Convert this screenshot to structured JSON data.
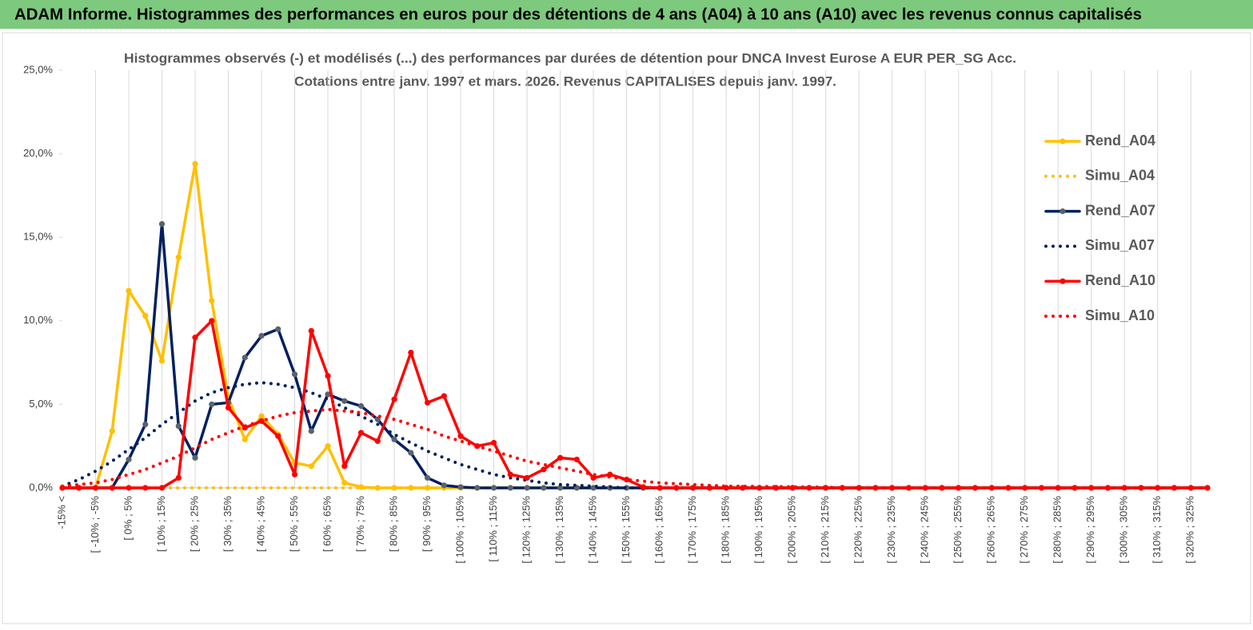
{
  "header": {
    "title": "ADAM Informe. Histogrammes des performances en euros pour des détentions de 4 ans (A04) à 10 ans (A10) avec les revenus connus capitalisés"
  },
  "chart_data": {
    "type": "line",
    "title": "Histogrammes observés (-) et modélisés (...) des performances par durées de détention pour DNCA Invest Eurose A EUR PER_SG Acc.",
    "subtitle": "Cotations entre janv. 1997 et mars. 2026. Revenus CAPITALISES depuis janv. 1997.",
    "categories": [
      "-15% <",
      null,
      "[ -10% ; -5%",
      null,
      "[ 0% ; 5%",
      null,
      "[ 10% ; 15%",
      null,
      "[ 20% ; 25%",
      null,
      "[ 30% ; 35%",
      null,
      "[ 40% ; 45%",
      null,
      "[ 50% ; 55%",
      null,
      "[ 60% ; 65%",
      null,
      "[ 70% ; 75%",
      null,
      "[ 80% ; 85%",
      null,
      "[ 90% ; 95%",
      null,
      "[ 100% ; 105%",
      null,
      "[ 110% ; 115%",
      null,
      "[ 120% ; 125%",
      null,
      "[ 130% ; 135%",
      null,
      "[ 140% ; 145%",
      null,
      "[ 150% ; 155%",
      null,
      "[ 160% ; 165%",
      null,
      "[ 170% ; 175%",
      null,
      "[ 180% ; 185%",
      null,
      "[ 190% ; 195%",
      null,
      "[ 200% ; 205%",
      null,
      "[ 210% ; 215%",
      null,
      "[ 220% ; 225%",
      null,
      "[ 230% ; 235%",
      null,
      "[ 240% ; 245%",
      null,
      "[ 250% ; 255%",
      null,
      "[ 260% ; 265%",
      null,
      "[ 270% ; 275%",
      null,
      "[ 280% ; 285%",
      null,
      "[ 290% ; 295%",
      null,
      "[ 300% ; 305%",
      null,
      "[ 310% ; 315%",
      null,
      "[ 320% ; 325%",
      null
    ],
    "series": [
      {
        "name": "Rend_A04",
        "color": "#ffc000",
        "marker_color": "#ffc000",
        "style": "solid",
        "values": [
          0,
          0,
          0,
          3.4,
          11.8,
          10.3,
          7.6,
          13.8,
          19.4,
          11.2,
          5.4,
          2.9,
          4.3,
          3.2,
          1.5,
          1.3,
          2.5,
          0.3,
          0.05,
          0,
          0,
          0,
          0,
          0,
          0,
          0,
          0,
          0,
          0,
          0,
          0,
          0,
          0,
          0,
          0,
          0,
          0,
          0,
          0,
          0,
          0,
          0,
          0,
          0,
          0,
          0,
          0,
          0,
          0,
          0,
          0,
          0,
          0,
          0,
          0,
          0,
          0,
          0,
          0,
          0,
          0,
          0,
          0,
          0,
          0,
          0,
          0,
          0,
          0,
          0
        ]
      },
      {
        "name": "Simu_A04",
        "color": "#ffc000",
        "style": "dotted",
        "values": [
          0,
          0,
          0,
          0,
          0,
          0,
          0,
          0,
          0,
          0,
          0,
          0,
          0,
          0,
          0,
          0,
          0,
          0,
          0,
          0,
          0,
          0,
          0,
          0,
          0,
          0,
          0,
          0,
          0,
          0,
          0,
          0,
          0,
          0,
          0,
          0,
          0,
          0,
          0,
          0,
          0,
          0,
          0,
          0,
          0,
          0,
          0,
          0,
          0,
          0,
          0,
          0,
          0,
          0,
          0,
          0,
          0,
          0,
          0,
          0,
          0,
          0,
          0,
          0,
          0,
          0,
          0,
          0,
          0,
          0
        ]
      },
      {
        "name": "Rend_A07",
        "color": "#002060",
        "marker_color": "#59636e",
        "style": "solid",
        "values": [
          0,
          0,
          0,
          0,
          1.7,
          3.8,
          15.8,
          3.7,
          1.8,
          5.0,
          5.1,
          7.8,
          9.1,
          9.5,
          6.8,
          3.4,
          5.6,
          5.2,
          4.9,
          4.1,
          2.9,
          2.1,
          0.6,
          0.15,
          0.05,
          0,
          0,
          0,
          0,
          0,
          0,
          0,
          0,
          0,
          0,
          0,
          0,
          0,
          0,
          0,
          0,
          0,
          0,
          0,
          0,
          0,
          0,
          0,
          0,
          0,
          0,
          0,
          0,
          0,
          0,
          0,
          0,
          0,
          0,
          0,
          0,
          0,
          0,
          0,
          0,
          0,
          0,
          0,
          0,
          0
        ]
      },
      {
        "name": "Simu_A07",
        "color": "#002060",
        "style": "dotted",
        "values": [
          0.1,
          0.5,
          1.0,
          1.6,
          2.3,
          3.0,
          3.8,
          4.5,
          5.2,
          5.7,
          6.0,
          6.2,
          6.3,
          6.2,
          6.0,
          5.7,
          5.3,
          4.8,
          4.3,
          3.8,
          3.2,
          2.7,
          2.2,
          1.8,
          1.4,
          1.1,
          0.8,
          0.6,
          0.45,
          0.3,
          0.2,
          0.15,
          0.1,
          0.05,
          0,
          0,
          0,
          0,
          0,
          0,
          0,
          0,
          0,
          0,
          0,
          0,
          0,
          0,
          0,
          0,
          0,
          0,
          0,
          0,
          0,
          0,
          0,
          0,
          0,
          0,
          0,
          0,
          0,
          0,
          0,
          0,
          0,
          0,
          0,
          0
        ]
      },
      {
        "name": "Rend_A10",
        "color": "#ff0000",
        "marker_color": "#ff0000",
        "style": "solid",
        "values": [
          0,
          0,
          0,
          0,
          0,
          0,
          0,
          0.6,
          9.0,
          10.0,
          4.8,
          3.6,
          4.0,
          3.1,
          0.8,
          9.4,
          6.7,
          1.3,
          3.3,
          2.8,
          5.3,
          8.1,
          5.1,
          5.5,
          3.1,
          2.5,
          2.7,
          0.8,
          0.6,
          1.1,
          1.8,
          1.7,
          0.6,
          0.8,
          0.5,
          0.05,
          0,
          0,
          0,
          0,
          0,
          0,
          0,
          0,
          0,
          0,
          0,
          0,
          0,
          0,
          0,
          0,
          0,
          0,
          0,
          0,
          0,
          0,
          0,
          0,
          0,
          0,
          0,
          0,
          0,
          0,
          0,
          0,
          0,
          0
        ]
      },
      {
        "name": "Simu_A10",
        "color": "#ff0000",
        "style": "dotted",
        "values": [
          0.1,
          0.2,
          0.3,
          0.5,
          0.8,
          1.1,
          1.5,
          1.9,
          2.4,
          2.9,
          3.3,
          3.7,
          4.0,
          4.3,
          4.5,
          4.6,
          4.7,
          4.6,
          4.5,
          4.3,
          4.1,
          3.8,
          3.5,
          3.1,
          2.8,
          2.5,
          2.2,
          1.9,
          1.6,
          1.4,
          1.2,
          1.0,
          0.8,
          0.65,
          0.5,
          0.4,
          0.3,
          0.25,
          0.2,
          0.15,
          0.1,
          0.1,
          0.08,
          0.08,
          0.06,
          0.05,
          0.05,
          0,
          0,
          0,
          0,
          0,
          0,
          0,
          0,
          0,
          0,
          0,
          0,
          0,
          0,
          0,
          0,
          0,
          0,
          0,
          0,
          0,
          0,
          0
        ]
      }
    ],
    "ylim": [
      0,
      25
    ],
    "yticks": [
      {
        "value": 0,
        "label": "0,0%"
      },
      {
        "value": 5,
        "label": "5,0%"
      },
      {
        "value": 10,
        "label": "10,0%"
      },
      {
        "value": 15,
        "label": "15,0%"
      },
      {
        "value": 20,
        "label": "20,0%"
      },
      {
        "value": 25,
        "label": "25,0%"
      }
    ],
    "grid": false,
    "category_grid": true,
    "legend": "right"
  }
}
